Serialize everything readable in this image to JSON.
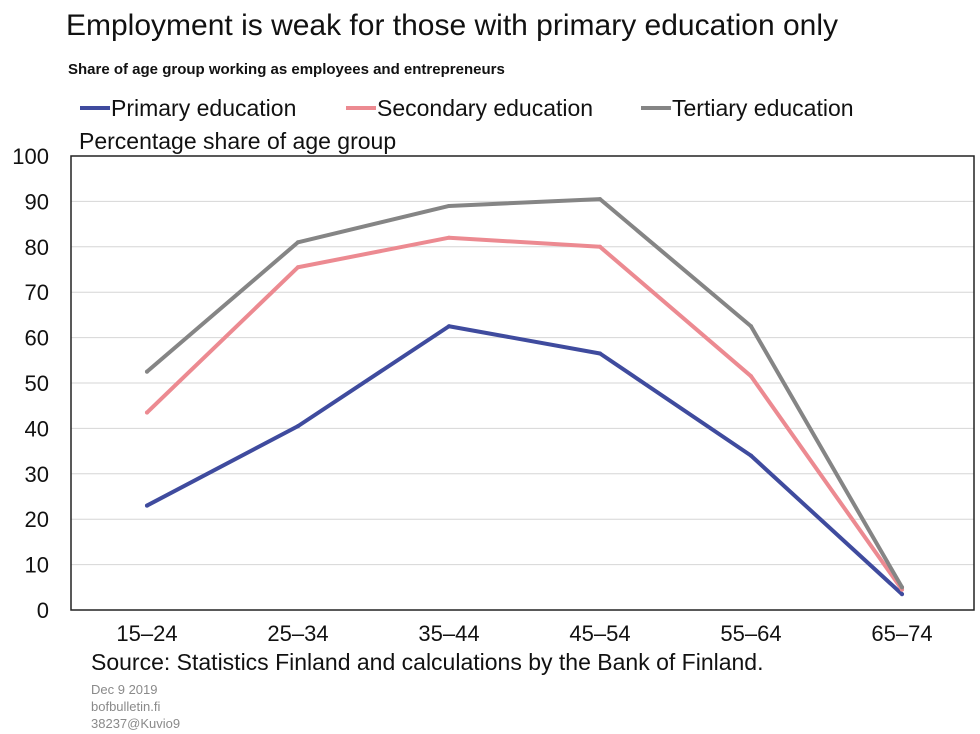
{
  "chart_data": {
    "type": "line",
    "title": "Employment is weak for those with primary education only",
    "subtitle": "Share of age group working as employees and entrepreneurs",
    "ylabel": "Percentage share of age group",
    "xlabel": "",
    "categories": [
      "15–24",
      "25–34",
      "35–44",
      "45–54",
      "55–64",
      "65–74"
    ],
    "ylim": [
      0,
      100
    ],
    "yticks": [
      0,
      10,
      20,
      30,
      40,
      50,
      60,
      70,
      80,
      90,
      100
    ],
    "grid": true,
    "legend_position": "top",
    "series": [
      {
        "name": "Primary education",
        "color": "#3f4b9e",
        "values": [
          23,
          40.5,
          62.5,
          56.5,
          34,
          3.5
        ]
      },
      {
        "name": "Secondary education",
        "color": "#ec8a91",
        "values": [
          43.5,
          75.5,
          82,
          80,
          51.5,
          4.5
        ]
      },
      {
        "name": "Tertiary education",
        "color": "#858585",
        "values": [
          52.5,
          81,
          89,
          90.5,
          62.5,
          5
        ]
      }
    ]
  },
  "source": "Source: Statistics Finland and calculations by the Bank of Finland.",
  "footer": {
    "date": "Dec 9 2019",
    "site": "bofbulletin.fi",
    "code": "38237@Kuvio9"
  }
}
